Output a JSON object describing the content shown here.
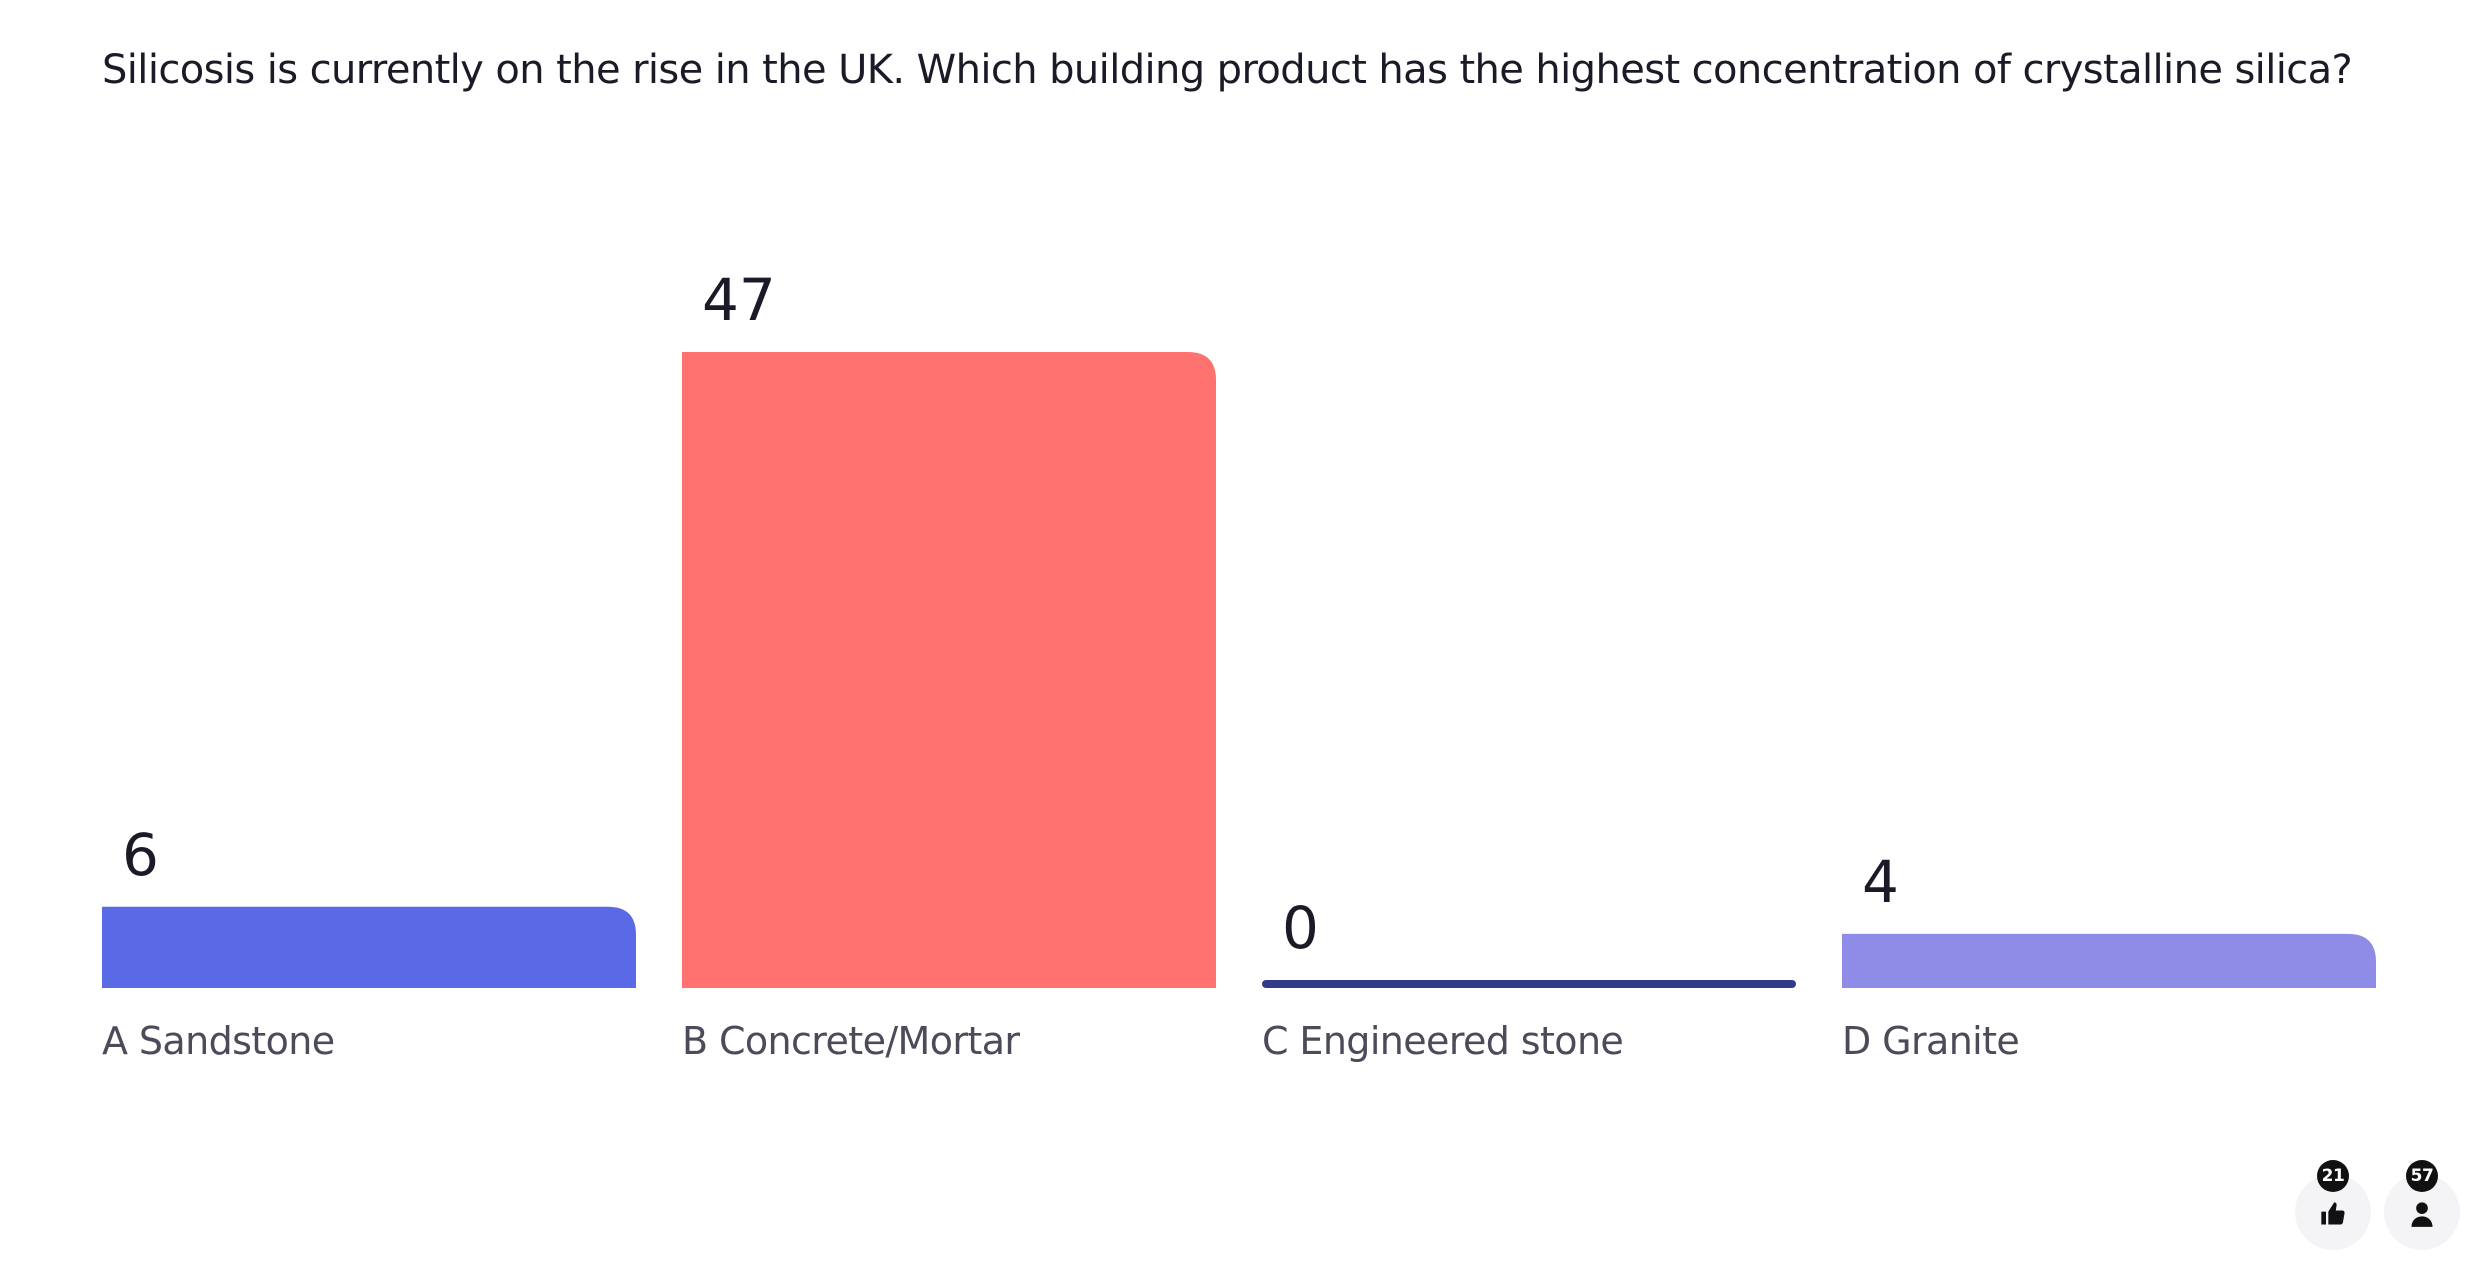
{
  "question": "Silicosis is currently on the rise in the UK. Which building product has the highest concentration of crystalline silica?",
  "chart_data": {
    "type": "bar",
    "categories": [
      "A Sandstone",
      "B Concrete/Mortar",
      "C Engineered stone",
      "D Granite"
    ],
    "values": [
      6,
      47,
      0,
      4
    ],
    "colors": [
      "#5a69e6",
      "#ff7270",
      "#323a8a",
      "#8f8ce8"
    ],
    "title": "",
    "xlabel": "",
    "ylabel": "",
    "grid": false,
    "legend": false
  },
  "reactions": {
    "likes": {
      "count": "21",
      "icon": "thumbs-up-icon"
    },
    "participants": {
      "count": "57",
      "icon": "person-icon"
    }
  }
}
